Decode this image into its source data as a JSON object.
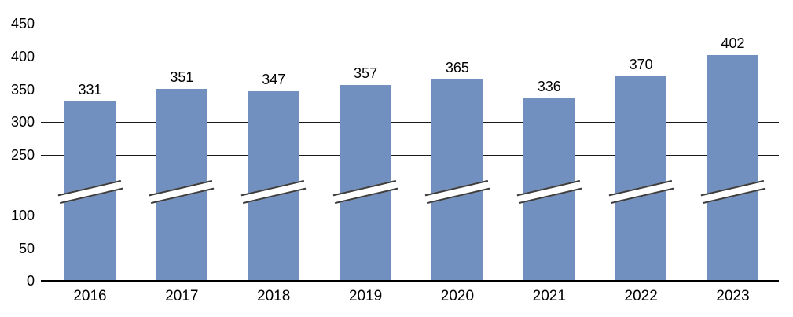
{
  "chart_data": {
    "type": "bar",
    "title": "",
    "categories": [
      "2016",
      "2017",
      "2018",
      "2019",
      "2020",
      "2021",
      "2022",
      "2023"
    ],
    "values": [
      331,
      351,
      347,
      357,
      365,
      336,
      370,
      402
    ],
    "data_labels": [
      "331",
      "351",
      "347",
      "357",
      "365",
      "336",
      "370",
      "402"
    ],
    "y_ticks": [
      450,
      400,
      350,
      300,
      250,
      100,
      50,
      0
    ],
    "y_tick_labels": [
      "450",
      "400",
      "350",
      "300",
      "250",
      "100",
      "50",
      "0"
    ],
    "ylim": [
      0,
      450
    ],
    "axis_break": {
      "between": [
        100,
        250
      ],
      "marker": "double-diagonal-slash-on-each-bar"
    },
    "xlabel": "",
    "ylabel": "",
    "legend": "none",
    "grid": "horizontal",
    "colors": {
      "bar_fill": "#7290BF",
      "gridline": "#1a1a1a",
      "axis": "#000000",
      "break_mark_stroke": "#3d3d3d",
      "text": "#000000",
      "background": "#ffffff"
    }
  }
}
